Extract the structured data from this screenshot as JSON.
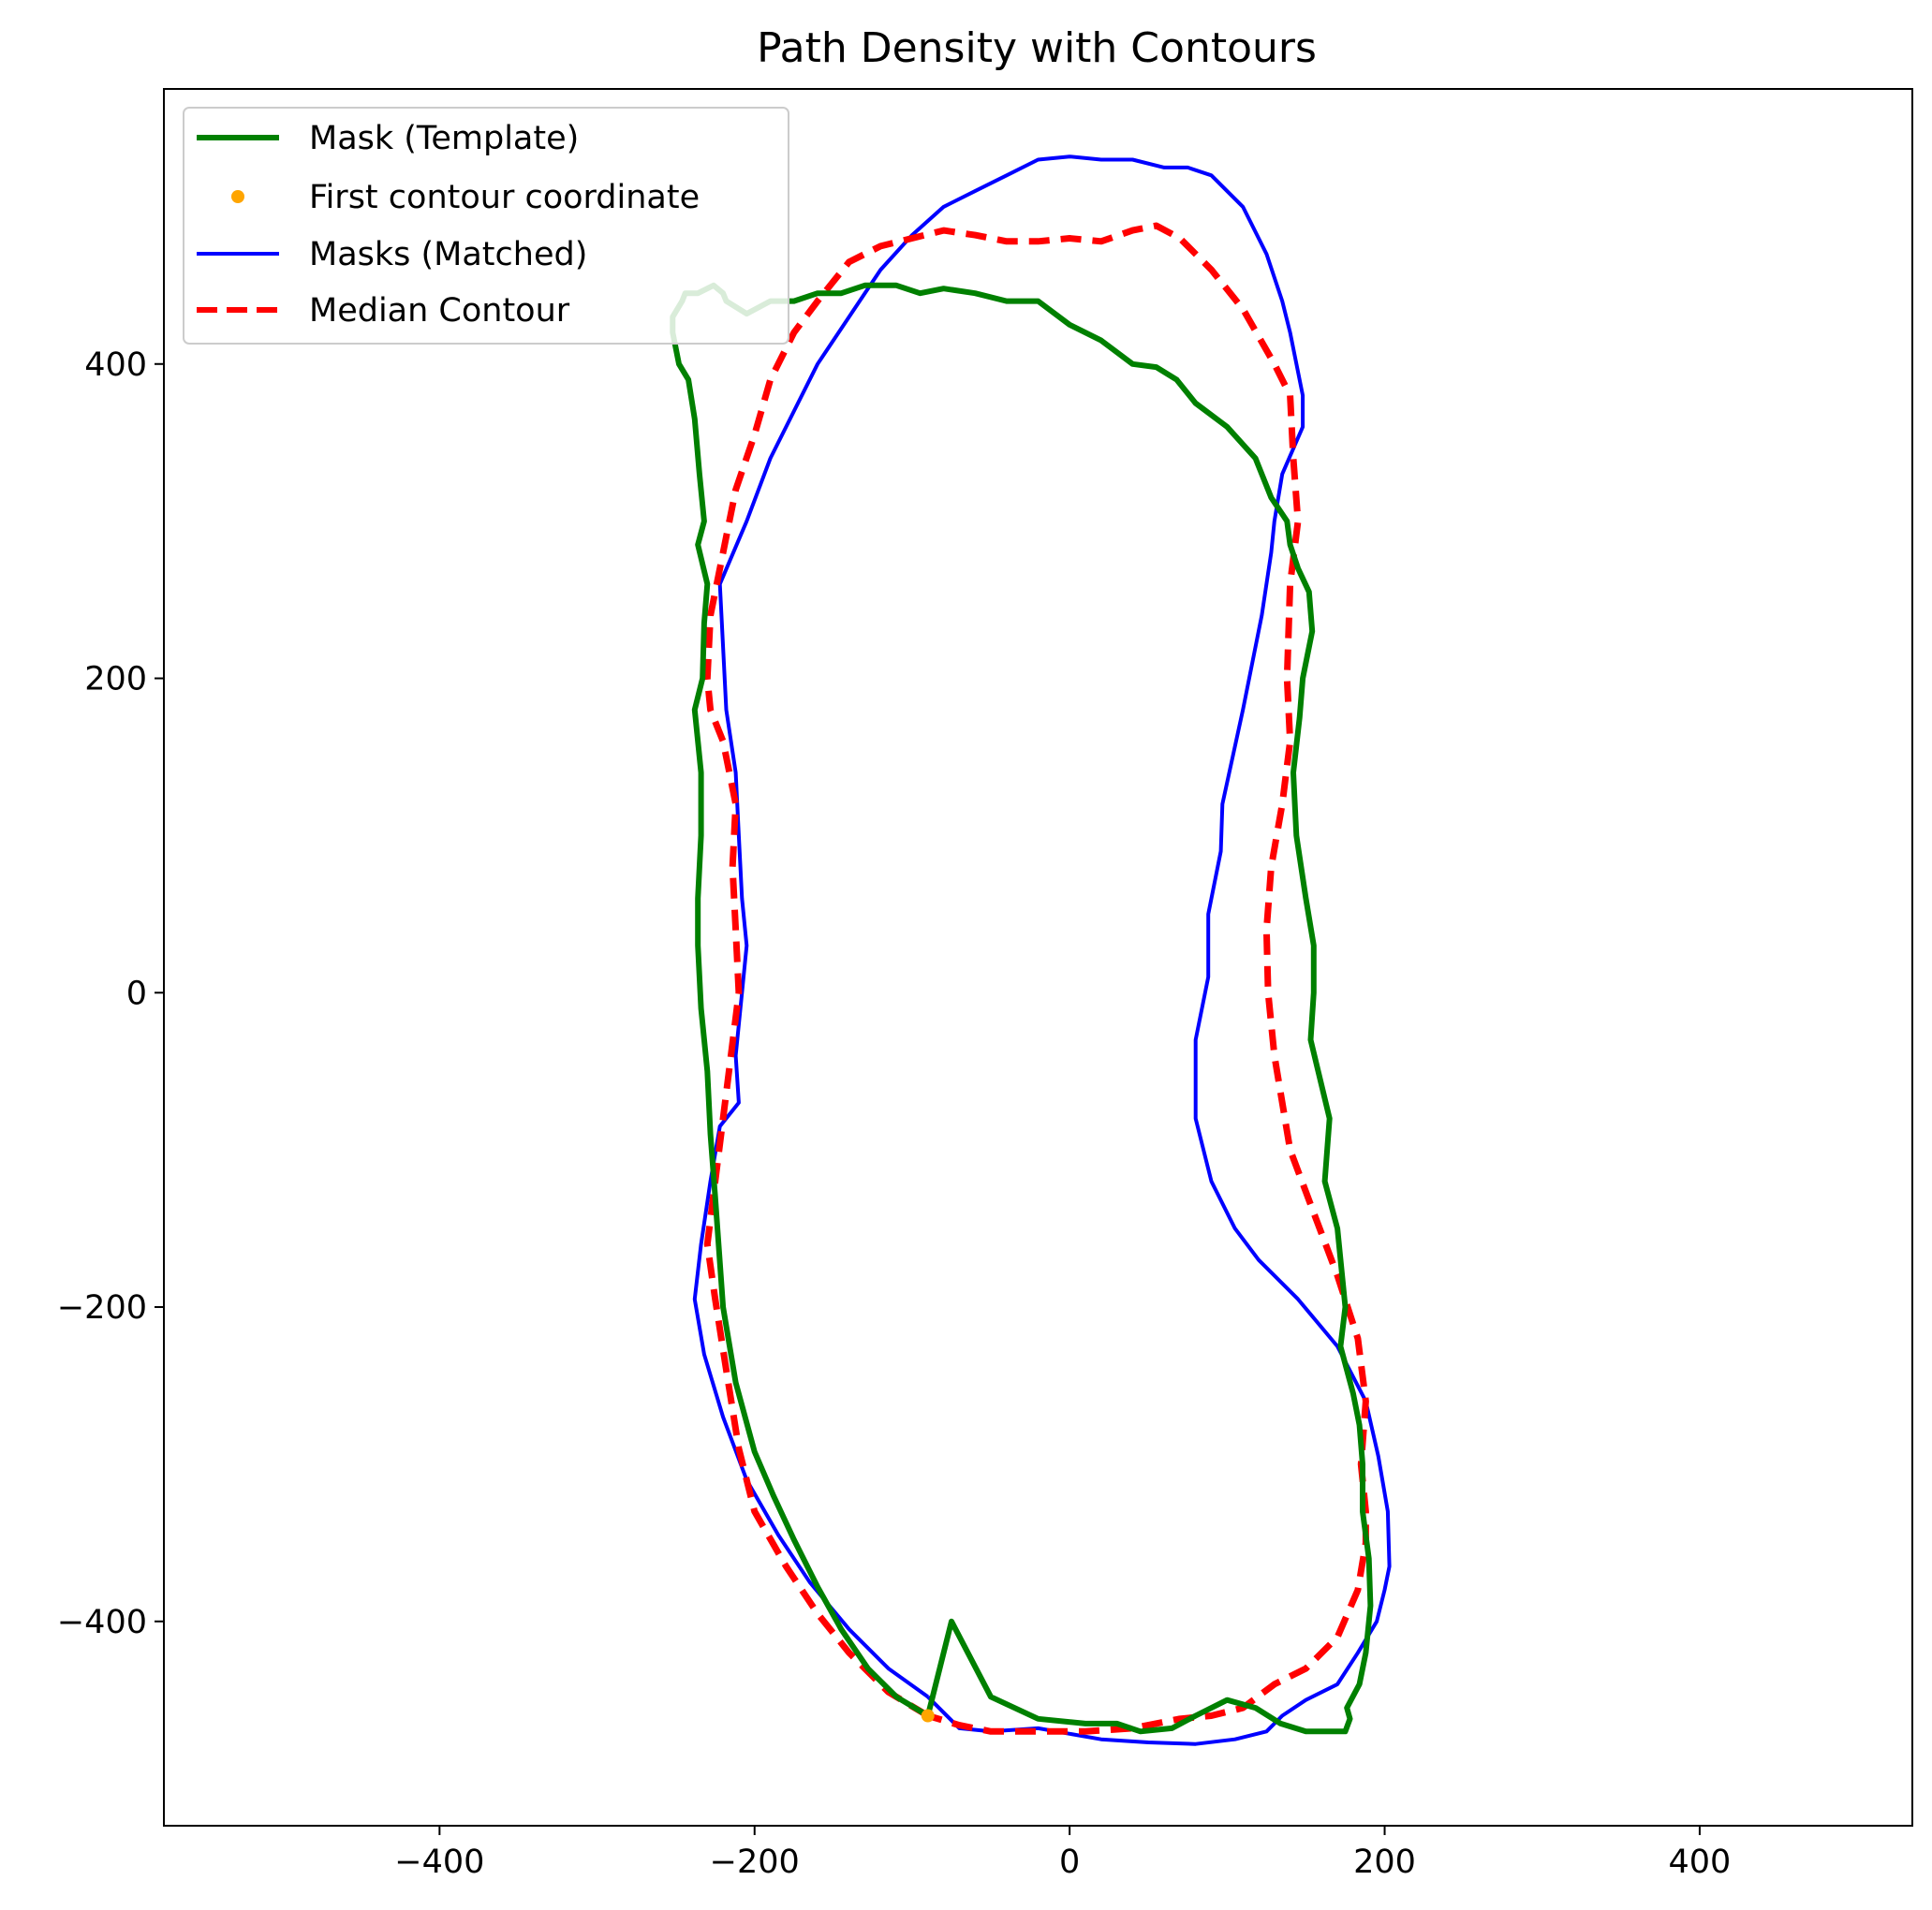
{
  "chart_data": {
    "type": "line",
    "title": "Path Density with Contours",
    "xlabel": "",
    "ylabel": "",
    "xlim": [
      -575,
      535
    ],
    "ylim": [
      -530,
      575
    ],
    "xticks": [
      -400,
      -200,
      0,
      200,
      400
    ],
    "yticks": [
      -400,
      -200,
      0,
      200,
      400
    ],
    "xtick_labels": [
      "−400",
      "−200",
      "0",
      "200",
      "400"
    ],
    "ytick_labels": [
      "−400",
      "−200",
      "0",
      "200",
      "400"
    ],
    "grid": false,
    "legend_position": "top-left",
    "legend": [
      {
        "label": "Mask (Template)",
        "color": "#008000",
        "style": "solid-thick"
      },
      {
        "label": "First contour coordinate",
        "color": "#ffa500",
        "style": "point"
      },
      {
        "label": "Masks (Matched)",
        "color": "#0000ff",
        "style": "solid"
      },
      {
        "label": "Median Contour",
        "color": "#ff0000",
        "style": "dashed"
      }
    ],
    "series": [
      {
        "name": "Mask (Template)",
        "color": "#008000",
        "x": [
          -90,
          -110,
          -128,
          -145,
          -160,
          -175,
          -188,
          -200,
          -212,
          -220,
          -225,
          -228,
          -230,
          -234,
          -236,
          -236,
          -234,
          -234,
          -238,
          -233,
          -232,
          -230,
          -236,
          -232,
          -235,
          -238,
          -242,
          -248,
          -252,
          -252,
          -246,
          -244,
          -236,
          -226,
          -220,
          -218,
          -205,
          -190,
          -175,
          -160,
          -145,
          -130,
          -110,
          -95,
          -80,
          -60,
          -40,
          -20,
          0,
          20,
          40,
          55,
          68,
          80,
          100,
          118,
          128,
          138,
          140,
          145,
          152,
          154,
          148,
          146,
          142,
          144,
          150,
          155,
          155,
          153,
          165,
          162,
          170,
          175,
          172,
          180,
          184,
          186,
          186,
          190,
          191,
          188,
          184,
          176,
          178,
          175,
          170,
          150,
          134,
          118,
          100,
          80,
          65,
          45,
          30,
          10,
          -20,
          -50,
          -75,
          -90
        ],
        "y": [
          -460,
          -448,
          -430,
          -405,
          -378,
          -348,
          -320,
          -292,
          -248,
          -200,
          -130,
          -90,
          -50,
          -10,
          30,
          60,
          100,
          140,
          180,
          200,
          235,
          260,
          285,
          300,
          330,
          365,
          390,
          400,
          420,
          430,
          440,
          445,
          445,
          450,
          445,
          440,
          432,
          440,
          440,
          445,
          445,
          450,
          450,
          445,
          448,
          445,
          440,
          440,
          425,
          415,
          400,
          398,
          390,
          375,
          360,
          340,
          315,
          300,
          285,
          270,
          255,
          230,
          200,
          175,
          140,
          100,
          60,
          30,
          0,
          -30,
          -80,
          -120,
          -150,
          -200,
          -225,
          -255,
          -275,
          -300,
          -330,
          -360,
          -390,
          -420,
          -440,
          -455,
          -462,
          -470,
          -470,
          -470,
          -465,
          -455,
          -450,
          -460,
          -468,
          -470,
          -465,
          -465,
          -462,
          -448,
          -400,
          -460
        ]
      },
      {
        "name": "Masks (Matched)",
        "color": "#0000ff",
        "x": [
          -90,
          -115,
          -140,
          -165,
          -185,
          -205,
          -220,
          -232,
          -238,
          -234,
          -228,
          -222,
          -210,
          -212,
          -208,
          -205,
          -208,
          -210,
          -212,
          -218,
          -220,
          -222,
          -205,
          -190,
          -175,
          -160,
          -140,
          -120,
          -100,
          -80,
          -60,
          -40,
          -20,
          0,
          20,
          40,
          60,
          75,
          90,
          110,
          125,
          135,
          140,
          148,
          148,
          135,
          130,
          128,
          122,
          110,
          97,
          96,
          88,
          88,
          80,
          80,
          90,
          105,
          120,
          145,
          170,
          188,
          196,
          202,
          203,
          200,
          195,
          183,
          170,
          150,
          135,
          125,
          105,
          80,
          50,
          20,
          -20,
          -50,
          -70,
          -90
        ],
        "y": [
          -448,
          -430,
          -405,
          -375,
          -345,
          -310,
          -270,
          -230,
          -195,
          -160,
          -120,
          -85,
          -70,
          -40,
          0,
          30,
          60,
          100,
          140,
          180,
          220,
          260,
          300,
          340,
          370,
          400,
          430,
          460,
          482,
          500,
          510,
          520,
          530,
          532,
          530,
          530,
          525,
          525,
          520,
          500,
          470,
          440,
          420,
          380,
          360,
          330,
          300,
          280,
          240,
          180,
          120,
          90,
          50,
          10,
          -30,
          -80,
          -120,
          -150,
          -170,
          -195,
          -225,
          -260,
          -295,
          -330,
          -365,
          -380,
          -400,
          -420,
          -440,
          -450,
          -460,
          -470,
          -475,
          -478,
          -477,
          -475,
          -468,
          -470,
          -468,
          -448
        ]
      },
      {
        "name": "Median Contour",
        "color": "#ff0000",
        "x": [
          -90,
          -115,
          -140,
          -160,
          -180,
          -200,
          -210,
          -218,
          -225,
          -230,
          -225,
          -220,
          -215,
          -210,
          -212,
          -214,
          -212,
          -220,
          -228,
          -230,
          -228,
          -220,
          -212,
          -200,
          -190,
          -175,
          -160,
          -140,
          -120,
          -100,
          -80,
          -60,
          -40,
          -20,
          0,
          20,
          40,
          55,
          70,
          90,
          110,
          130,
          140,
          142,
          145,
          140,
          138,
          140,
          135,
          128,
          125,
          126,
          130,
          140,
          155,
          170,
          183,
          188,
          185,
          188,
          188,
          183,
          170,
          150,
          130,
          110,
          90,
          70,
          40,
          10,
          -20,
          -50,
          -70,
          -90
        ],
        "y": [
          -460,
          -445,
          -420,
          -395,
          -365,
          -330,
          -290,
          -240,
          -195,
          -160,
          -120,
          -80,
          -40,
          0,
          40,
          80,
          120,
          160,
          180,
          200,
          240,
          280,
          320,
          355,
          390,
          420,
          440,
          465,
          475,
          480,
          485,
          482,
          478,
          478,
          480,
          478,
          485,
          488,
          480,
          460,
          435,
          400,
          380,
          340,
          300,
          260,
          200,
          160,
          120,
          80,
          40,
          0,
          -40,
          -100,
          -140,
          -180,
          -220,
          -260,
          -300,
          -330,
          -350,
          -380,
          -410,
          -430,
          -440,
          -455,
          -460,
          -462,
          -468,
          -470,
          -470,
          -470,
          -466,
          -460
        ]
      }
    ],
    "points": [
      {
        "name": "First contour coordinate",
        "color": "#ffa500",
        "x": -90,
        "y": -460
      }
    ]
  }
}
